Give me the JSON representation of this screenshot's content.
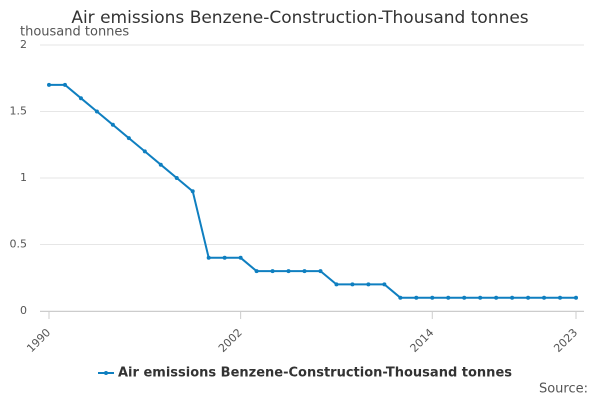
{
  "chart_data": {
    "type": "line",
    "title": "Air emissions Benzene-Construction-Thousand tonnes",
    "y_label": "thousand tonnes",
    "source": "Source:",
    "x": [
      1990,
      1991,
      1992,
      1993,
      1994,
      1995,
      1996,
      1997,
      1998,
      1999,
      2000,
      2001,
      2002,
      2003,
      2004,
      2005,
      2006,
      2007,
      2008,
      2009,
      2010,
      2011,
      2012,
      2013,
      2014,
      2015,
      2016,
      2017,
      2018,
      2019,
      2020,
      2021,
      2022,
      2023
    ],
    "series": [
      {
        "name": "Air emissions Benzene-Construction-Thousand tonnes",
        "color": "#0f7fc0",
        "values": [
          1.7,
          1.7,
          1.6,
          1.5,
          1.4,
          1.3,
          1.2,
          1.1,
          1.0,
          0.9,
          0.4,
          0.4,
          0.4,
          0.3,
          0.3,
          0.3,
          0.3,
          0.3,
          0.2,
          0.2,
          0.2,
          0.2,
          0.1,
          0.1,
          0.1,
          0.1,
          0.1,
          0.1,
          0.1,
          0.1,
          0.1,
          0.1,
          0.1,
          0.1
        ]
      }
    ],
    "xlim": [
      1990,
      2023
    ],
    "xticks": [
      1990,
      2002,
      2014,
      2023
    ],
    "ylim": [
      0,
      2
    ],
    "yticks": [
      0,
      0.5,
      1,
      1.5,
      2
    ],
    "grid": true
  }
}
